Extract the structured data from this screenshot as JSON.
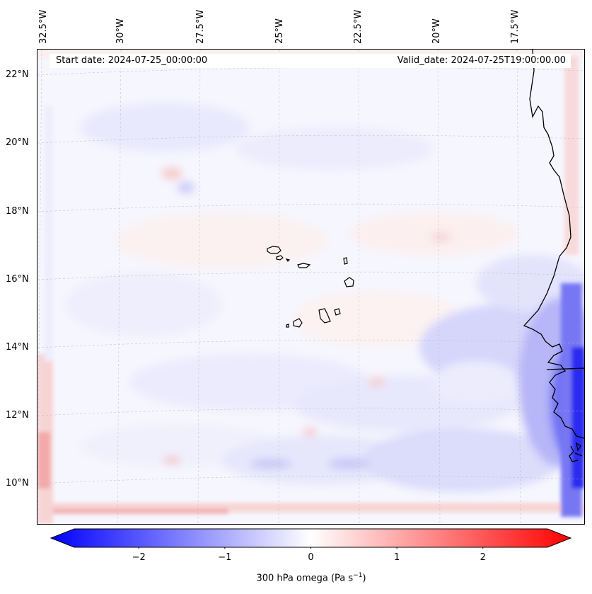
{
  "map": {
    "longitude_labels": [
      "32.5°W",
      "30°W",
      "27.5°W",
      "25°W",
      "22.5°W",
      "20°W",
      "17.5°W"
    ],
    "latitude_labels": [
      "22°N",
      "20°N",
      "18°N",
      "16°N",
      "14°N",
      "12°N",
      "10°N"
    ],
    "start_date": "Start date: 2024-07-25_00:00:00",
    "valid_date": "Valid_date: 2024-07-25T19:00:00.00",
    "field": "300 hPa omega",
    "features": [
      "Cape Verde islands",
      "West African coastline (Senegal, Gambia, Guinea-Bissau)"
    ]
  },
  "colorbar": {
    "label_text": "300 hPa omega (Pa s",
    "label_superscript": "−1",
    "label_close": ")",
    "ticks": [
      "−2",
      "−1",
      "0",
      "1",
      "2"
    ],
    "tick_values": [
      -2,
      -1,
      0,
      1,
      2
    ],
    "range": [
      -2.75,
      2.75
    ],
    "colors": {
      "negative": "#0000ff",
      "zero": "#ffffff",
      "positive": "#ff0000"
    },
    "extend": "both"
  }
}
